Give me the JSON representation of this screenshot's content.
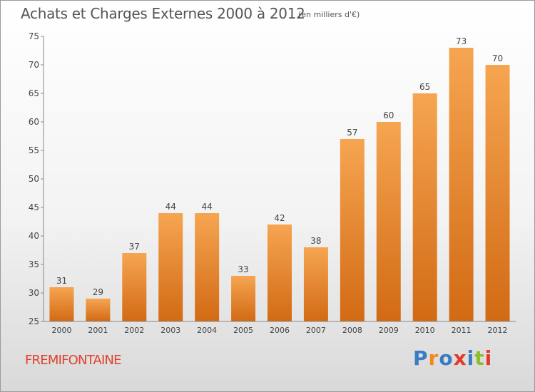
{
  "header": {
    "title": "Achats et Charges Externes 2000 à 2012",
    "subtitle": "(en milliers d'€)"
  },
  "footer": {
    "town": "FREMIFONTAINE",
    "logo": "Proxiti"
  },
  "colors": {
    "bar_top": "#f6a551",
    "bar_bottom": "#d26a14",
    "town": "#e0412f",
    "logo_letters": [
      "#3a7cc4",
      "#f08a1c",
      "#3a7cc4",
      "#e23a2a",
      "#3a7cc4",
      "#8cbf2a",
      "#e23a2a"
    ]
  },
  "chart_data": {
    "type": "bar",
    "title": "Achats et Charges Externes 2000 à 2012",
    "subtitle": "(en milliers d'€)",
    "categories": [
      "2000",
      "2001",
      "2002",
      "2003",
      "2004",
      "2005",
      "2006",
      "2007",
      "2008",
      "2009",
      "2010",
      "2011",
      "2012"
    ],
    "values": [
      31,
      29,
      37,
      44,
      44,
      33,
      42,
      38,
      57,
      60,
      65,
      73,
      70
    ],
    "ylim": [
      25,
      75
    ],
    "yticks": [
      25,
      30,
      35,
      40,
      45,
      50,
      55,
      60,
      65,
      70,
      75
    ],
    "grid": false,
    "data_labels": true
  }
}
